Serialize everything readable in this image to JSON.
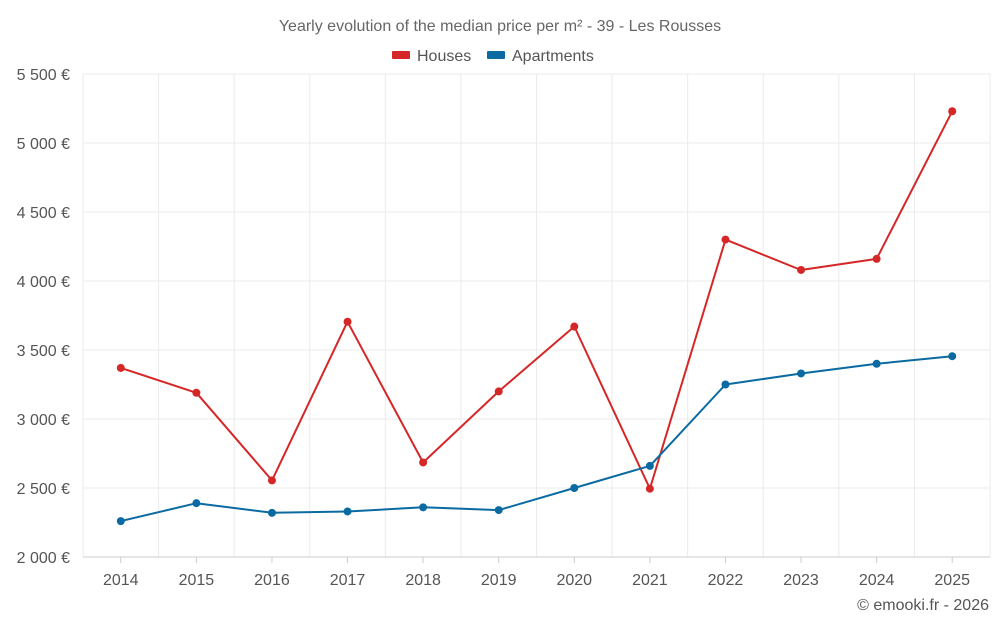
{
  "chart_data": {
    "type": "line",
    "title": "Yearly evolution of the median price per m² - 39 - Les Rousses",
    "categories": [
      "2014",
      "2015",
      "2016",
      "2017",
      "2018",
      "2019",
      "2020",
      "2021",
      "2022",
      "2023",
      "2024",
      "2025"
    ],
    "series": [
      {
        "name": "Houses",
        "color": "#d62728",
        "values": [
          3370,
          3190,
          2555,
          3705,
          2685,
          3200,
          3670,
          2495,
          4300,
          4080,
          4160,
          5230
        ]
      },
      {
        "name": "Apartments",
        "color": "#0a6aa1",
        "values": [
          2260,
          2390,
          2320,
          2330,
          2360,
          2340,
          2500,
          2660,
          3250,
          3330,
          3400,
          3455
        ]
      }
    ],
    "ylim": [
      2000,
      5500
    ],
    "yticks": [
      2000,
      2500,
      3000,
      3500,
      4000,
      4500,
      5000,
      5500
    ],
    "ytick_labels": [
      "2 000 €",
      "2 500 €",
      "3 000 €",
      "3 500 €",
      "4 000 €",
      "4 500 €",
      "5 000 €",
      "5 500 €"
    ],
    "xlabel": "",
    "ylabel": "",
    "grid": true,
    "legend_position": "top-center"
  },
  "credit": "© emooki.fr - 2026"
}
